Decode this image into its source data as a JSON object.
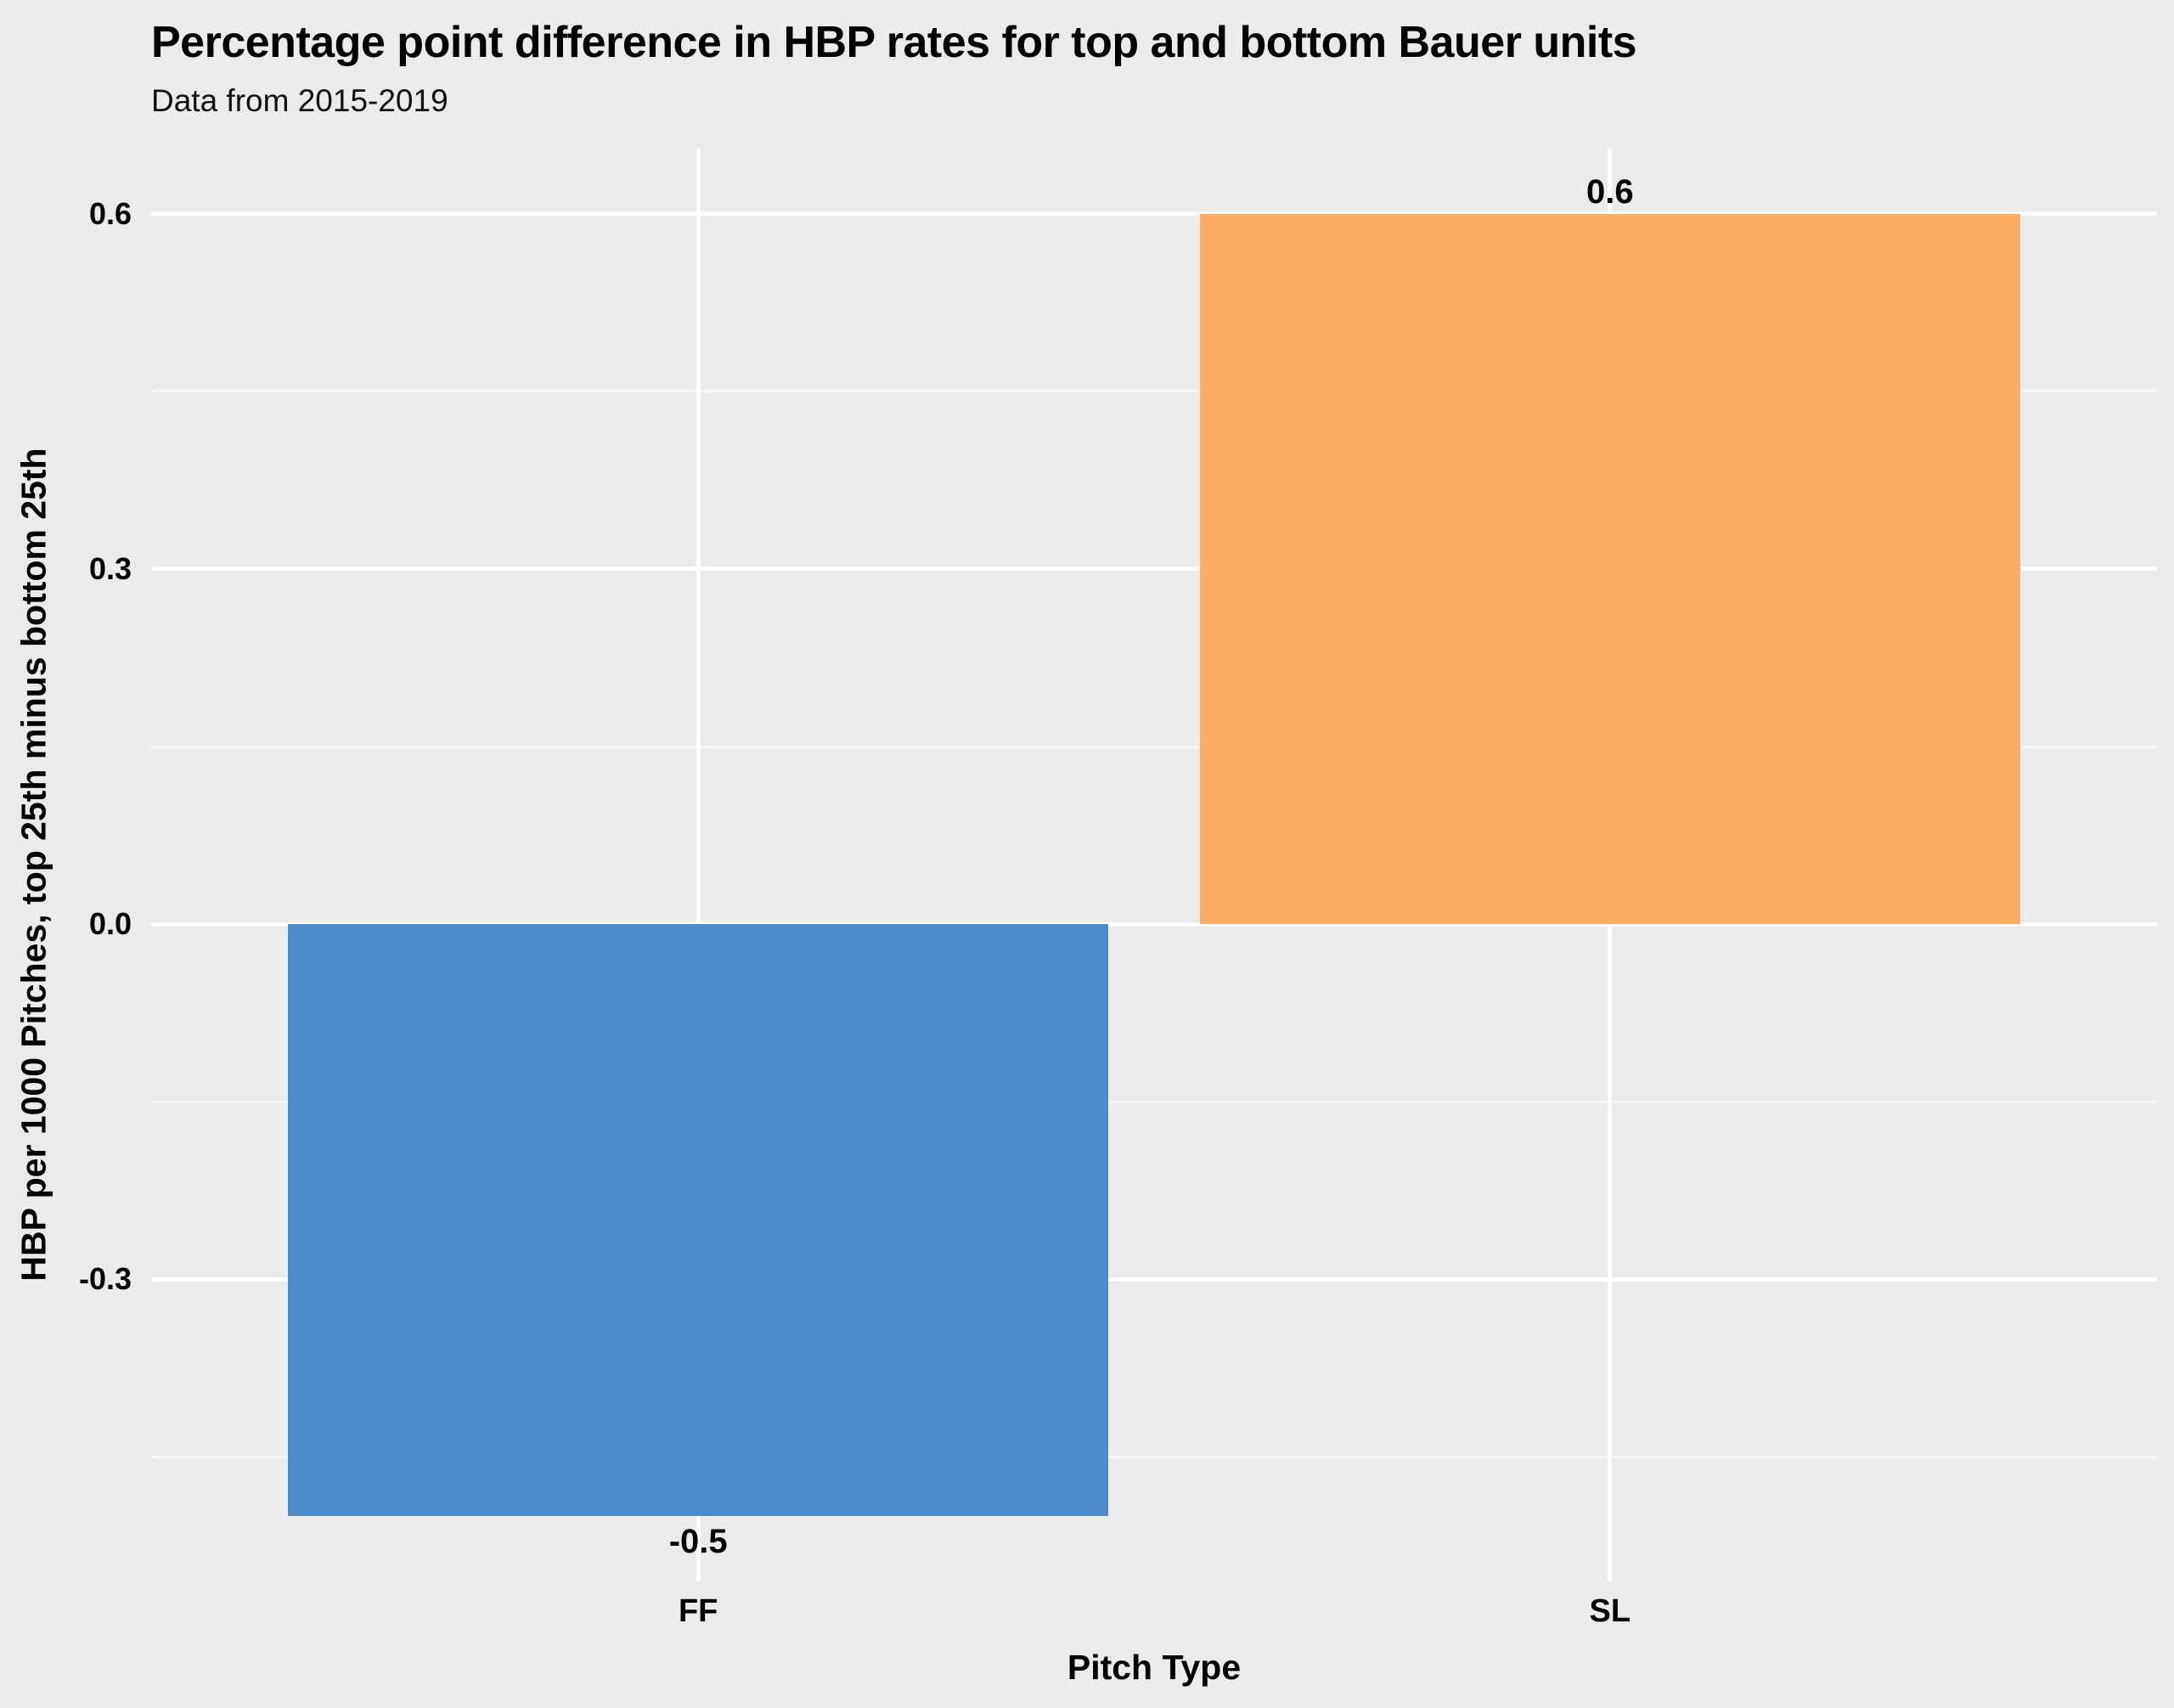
{
  "title": "Percentage point difference in HBP rates for top and bottom Bauer units",
  "subtitle": "Data from 2015-2019",
  "chart_data": {
    "type": "bar",
    "categories": [
      "FF",
      "SL"
    ],
    "values": [
      -0.5,
      0.6
    ],
    "bar_labels": [
      "-0.5",
      "0.6"
    ],
    "bar_colors": [
      "#4C8BC9",
      "#FBAE63"
    ],
    "title": "Percentage point difference in HBP rates for top and bottom Bauer units",
    "subtitle": "Data from 2015-2019",
    "xlabel": "Pitch Type",
    "ylabel": "HBP per 1000 Pitches, top 25th minus bottom 25th",
    "y_ticks": [
      0.6,
      0.3,
      0.0,
      -0.3
    ],
    "y_tick_labels": [
      "0.6",
      "0.3",
      "0.0",
      "-0.3"
    ],
    "ylim": [
      -0.555,
      0.655
    ],
    "grid": "white major and faint minor horizontal gridlines, white vertical gridline per category, gray panel",
    "legend": "none",
    "colors": {
      "background": "#EBEBEB",
      "grid_major": "#FFFFFF",
      "bar_ff": "#4C8BC9",
      "bar_sl": "#FBAE63",
      "text": "#000000"
    }
  }
}
